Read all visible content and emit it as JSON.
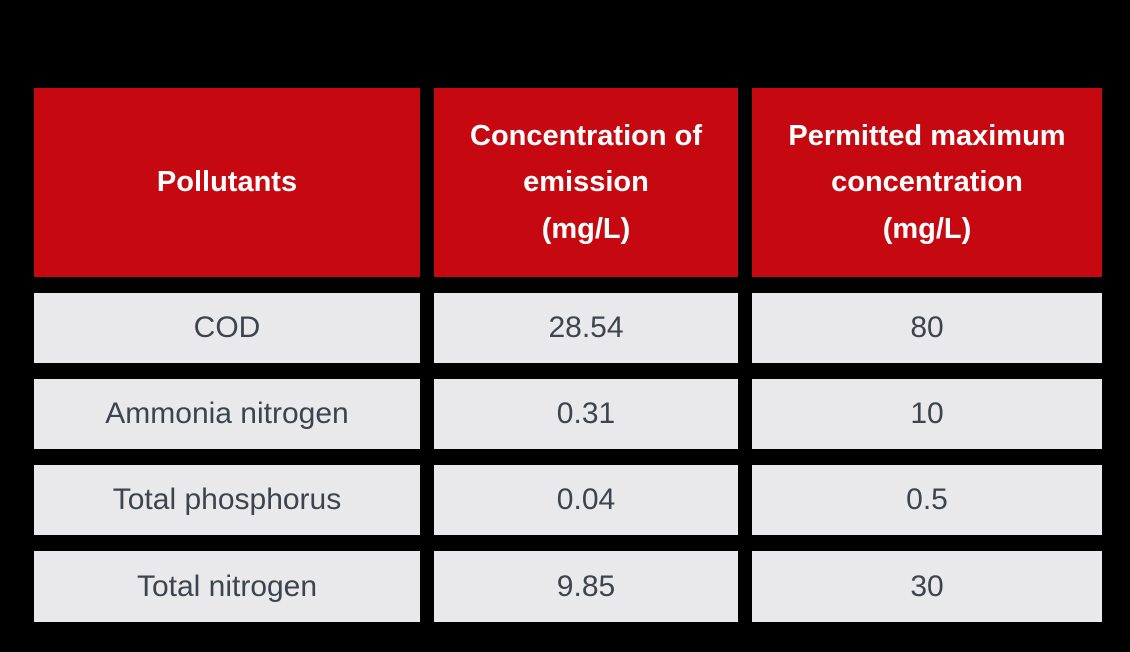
{
  "colors": {
    "background": "#000000",
    "header-bg": "#c60911",
    "header-text": "#ffffff",
    "cell-bg": "#e9e9eb",
    "cell-text": "#3d444d"
  },
  "table": {
    "header": {
      "pollutants": "Pollutants",
      "emission": "Concentration of\nemission\n(mg/L)",
      "max": "Permitted maximum\nconcentration\n(mg/L)"
    },
    "rows": [
      {
        "pollutant": "COD",
        "emission": "28.54",
        "max": "80"
      },
      {
        "pollutant": "Ammonia nitrogen",
        "emission": "0.31",
        "max": "10"
      },
      {
        "pollutant": "Total phosphorus",
        "emission": "0.04",
        "max": "0.5"
      },
      {
        "pollutant": "Total nitrogen",
        "emission": "9.85",
        "max": "30"
      }
    ]
  },
  "chart_data": {
    "type": "table",
    "columns": [
      "Pollutants",
      "Concentration of emission (mg/L)",
      "Permitted maximum concentration (mg/L)"
    ],
    "rows": [
      [
        "COD",
        28.54,
        80
      ],
      [
        "Ammonia nitrogen",
        0.31,
        10
      ],
      [
        "Total phosphorus",
        0.04,
        0.5
      ],
      [
        "Total nitrogen",
        9.85,
        30
      ]
    ]
  }
}
